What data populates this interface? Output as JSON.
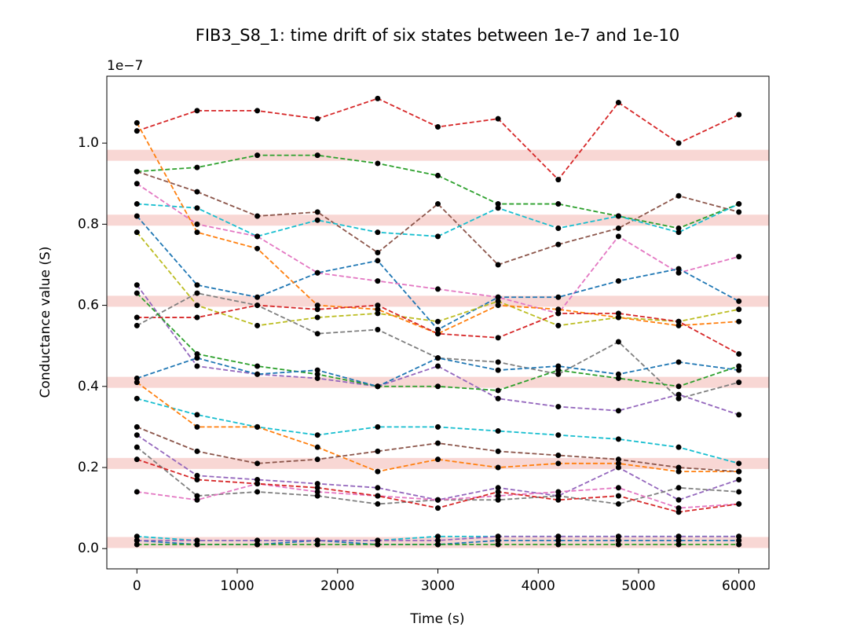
{
  "chart_data": {
    "type": "line",
    "title": "FIB3_S8_1: time drift of six states between 1e-7 and 1e-10",
    "xlabel": "Time (s)",
    "ylabel": "Conductance value (S)",
    "y_offset_label": "1e−7",
    "xlim": [
      -300,
      6300
    ],
    "ylim": [
      -0.05,
      1.165
    ],
    "xticks": [
      0,
      1000,
      2000,
      3000,
      4000,
      5000,
      6000
    ],
    "yticks": [
      {
        "value": 0,
        "label": "0.0"
      },
      0.2,
      0.4,
      0.6,
      0.8,
      {
        "value": 1,
        "label": "1.0"
      }
    ],
    "bands": [
      0.015,
      0.21,
      0.41,
      0.61,
      0.81,
      0.97
    ],
    "band_color": "#f8d7d4",
    "marker_color": "#000000",
    "x": [
      0,
      600,
      1200,
      1800,
      2400,
      3000,
      3600,
      4200,
      4800,
      5400,
      6000
    ],
    "series": [
      {
        "color": "#d62728",
        "values": [
          1.03,
          1.08,
          1.08,
          1.06,
          1.11,
          1.04,
          1.06,
          0.91,
          1.1,
          1.0,
          1.07
        ]
      },
      {
        "color": "#2ca02c",
        "values": [
          0.93,
          0.94,
          0.97,
          0.97,
          0.95,
          0.92,
          0.85,
          0.85,
          0.82,
          0.79,
          0.85
        ]
      },
      {
        "color": "#8c564b",
        "values": [
          0.93,
          0.88,
          0.82,
          0.83,
          0.73,
          0.85,
          0.7,
          0.75,
          0.79,
          0.87,
          0.83
        ]
      },
      {
        "color": "#17becf",
        "values": [
          0.85,
          0.84,
          0.77,
          0.81,
          0.78,
          0.77,
          0.84,
          0.79,
          0.82,
          0.78,
          0.85
        ]
      },
      {
        "color": "#e377c2",
        "values": [
          0.9,
          0.8,
          0.77,
          0.68,
          0.66,
          0.64,
          0.62,
          0.58,
          0.77,
          0.68,
          0.72
        ]
      },
      {
        "color": "#1f77b4",
        "values": [
          0.82,
          0.65,
          0.62,
          0.68,
          0.71,
          0.54,
          0.62,
          0.62,
          0.66,
          0.69,
          0.61
        ]
      },
      {
        "color": "#bcbd22",
        "values": [
          0.78,
          0.6,
          0.55,
          0.57,
          0.58,
          0.56,
          0.61,
          0.55,
          0.57,
          0.56,
          0.59
        ]
      },
      {
        "color": "#ff7f0e",
        "values": [
          1.05,
          0.78,
          0.74,
          0.6,
          0.59,
          0.53,
          0.6,
          0.59,
          0.57,
          0.55,
          0.56
        ]
      },
      {
        "color": "#d62728",
        "values": [
          0.57,
          0.57,
          0.6,
          0.59,
          0.6,
          0.53,
          0.52,
          0.58,
          0.58,
          0.56,
          0.48
        ]
      },
      {
        "color": "#7f7f7f",
        "values": [
          0.55,
          0.63,
          0.6,
          0.53,
          0.54,
          0.47,
          0.46,
          0.43,
          0.51,
          0.37,
          0.41
        ]
      },
      {
        "color": "#9467bd",
        "values": [
          0.65,
          0.45,
          0.43,
          0.42,
          0.4,
          0.45,
          0.37,
          0.35,
          0.34,
          0.38,
          0.33
        ]
      },
      {
        "color": "#2ca02c",
        "values": [
          0.63,
          0.48,
          0.45,
          0.43,
          0.4,
          0.4,
          0.39,
          0.44,
          0.42,
          0.4,
          0.45
        ]
      },
      {
        "color": "#1f77b4",
        "values": [
          0.42,
          0.47,
          0.43,
          0.44,
          0.4,
          0.47,
          0.44,
          0.45,
          0.43,
          0.46,
          0.44
        ]
      },
      {
        "color": "#17becf",
        "values": [
          0.37,
          0.33,
          0.3,
          0.28,
          0.3,
          0.3,
          0.29,
          0.28,
          0.27,
          0.25,
          0.21
        ]
      },
      {
        "color": "#ff7f0e",
        "values": [
          0.41,
          0.3,
          0.3,
          0.25,
          0.19,
          0.22,
          0.2,
          0.21,
          0.21,
          0.19,
          0.19
        ]
      },
      {
        "color": "#8c564b",
        "values": [
          0.3,
          0.24,
          0.21,
          0.22,
          0.24,
          0.26,
          0.24,
          0.23,
          0.22,
          0.2,
          0.19
        ]
      },
      {
        "color": "#9467bd",
        "values": [
          0.28,
          0.18,
          0.17,
          0.16,
          0.15,
          0.12,
          0.15,
          0.13,
          0.2,
          0.12,
          0.17
        ]
      },
      {
        "color": "#7f7f7f",
        "values": [
          0.25,
          0.13,
          0.14,
          0.13,
          0.11,
          0.12,
          0.12,
          0.13,
          0.11,
          0.15,
          0.14
        ]
      },
      {
        "color": "#e377c2",
        "values": [
          0.14,
          0.12,
          0.16,
          0.14,
          0.13,
          0.12,
          0.13,
          0.14,
          0.15,
          0.1,
          0.11
        ]
      },
      {
        "color": "#d62728",
        "values": [
          0.22,
          0.17,
          0.16,
          0.15,
          0.13,
          0.1,
          0.14,
          0.12,
          0.13,
          0.09,
          0.11
        ]
      },
      {
        "color": "#17becf",
        "values": [
          0.03,
          0.02,
          0.02,
          0.02,
          0.02,
          0.03,
          0.03,
          0.03,
          0.03,
          0.03,
          0.03
        ]
      },
      {
        "color": "#1f77b4",
        "values": [
          0.02,
          0.01,
          0.01,
          0.02,
          0.01,
          0.01,
          0.02,
          0.02,
          0.02,
          0.02,
          0.02
        ]
      },
      {
        "color": "#9467bd",
        "values": [
          0.02,
          0.02,
          0.02,
          0.02,
          0.02,
          0.02,
          0.03,
          0.03,
          0.03,
          0.03,
          0.03
        ]
      },
      {
        "color": "#2ca02c",
        "values": [
          0.01,
          0.01,
          0.01,
          0.01,
          0.01,
          0.01,
          0.01,
          0.01,
          0.01,
          0.01,
          0.01
        ]
      }
    ]
  }
}
